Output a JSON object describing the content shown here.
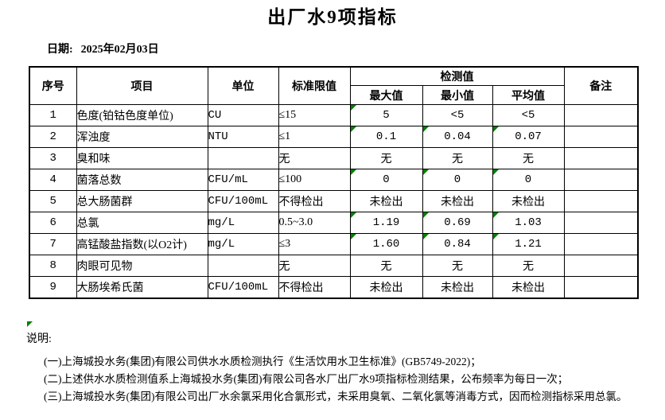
{
  "page": {
    "title": "出厂水9项指标",
    "date_label": "日期:",
    "date_value": "2025年02月03日"
  },
  "table": {
    "headers": {
      "seq": "序号",
      "item": "项目",
      "unit": "单位",
      "limit": "标准限值",
      "detection": "检测值",
      "max": "最大值",
      "min": "最小值",
      "avg": "平均值",
      "remark": "备注"
    },
    "rows": [
      {
        "seq": "1",
        "item": "色度(铂钴色度单位)",
        "unit": "CU",
        "limit": "≤15",
        "max": "5",
        "min": "<5",
        "avg": "<5",
        "remark": "",
        "markers": [
          true,
          false,
          false
        ]
      },
      {
        "seq": "2",
        "item": "浑浊度",
        "unit": "NTU",
        "limit": "≤1",
        "max": "0.1",
        "min": "0.04",
        "avg": "0.07",
        "remark": "",
        "markers": [
          true,
          true,
          true
        ]
      },
      {
        "seq": "3",
        "item": "臭和味",
        "unit": "",
        "limit": "无",
        "max": "无",
        "min": "无",
        "avg": "无",
        "remark": "",
        "markers": [
          false,
          false,
          false
        ]
      },
      {
        "seq": "4",
        "item": "菌落总数",
        "unit": "CFU/mL",
        "limit": "≤100",
        "max": "0",
        "min": "0",
        "avg": "0",
        "remark": "",
        "markers": [
          true,
          true,
          true
        ]
      },
      {
        "seq": "5",
        "item": "总大肠菌群",
        "unit": "CFU/100mL",
        "limit": "不得检出",
        "max": "未检出",
        "min": "未检出",
        "avg": "未检出",
        "remark": "",
        "markers": [
          false,
          false,
          false
        ]
      },
      {
        "seq": "6",
        "item": "总氯",
        "unit": "mg/L",
        "limit": "0.5~3.0",
        "max": "1.19",
        "min": "0.69",
        "avg": "1.03",
        "remark": "",
        "markers": [
          true,
          true,
          true
        ]
      },
      {
        "seq": "7",
        "item": "高锰酸盐指数(以O2计)",
        "unit": "mg/L",
        "limit": "≤3",
        "max": "1.60",
        "min": "0.84",
        "avg": "1.21",
        "remark": "",
        "markers": [
          true,
          true,
          true
        ]
      },
      {
        "seq": "8",
        "item": "肉眼可见物",
        "unit": "",
        "limit": "无",
        "max": "无",
        "min": "无",
        "avg": "无",
        "remark": "",
        "markers": [
          false,
          false,
          false
        ]
      },
      {
        "seq": "9",
        "item": "大肠埃希氏菌",
        "unit": "CFU/100mL",
        "limit": "不得检出",
        "max": "未检出",
        "min": "未检出",
        "avg": "未检出",
        "remark": "",
        "markers": [
          false,
          false,
          false
        ]
      }
    ]
  },
  "notes": {
    "label": "说明:",
    "items": [
      "(一)上海城投水务(集团)有限公司供水水质检测执行《生活饮用水卫生标准》(GB5749-2022)；",
      "(二)上述供水水质检测值系上海城投水务(集团)有限公司各水厂出厂水9项指标检测结果，公布频率为每日一次；",
      "(三)上海城投水务(集团)有限公司出厂水余氯采用化合氯形式，未采用臭氧、二氧化氯等消毒方式，因而检测指标采用总氯。"
    ]
  },
  "colors": {
    "marker_green": "#008000",
    "border": "#000000",
    "background": "#ffffff",
    "text": "#000000"
  }
}
